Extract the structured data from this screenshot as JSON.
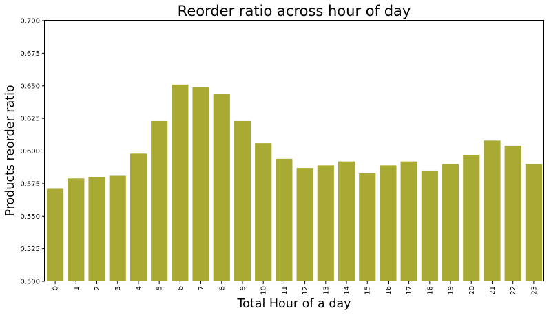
{
  "chart_data": {
    "type": "bar",
    "title": "Reorder ratio across hour of day",
    "xlabel": "Total Hour of a day",
    "ylabel": "Products reorder ratio",
    "categories": [
      "0",
      "1",
      "2",
      "3",
      "4",
      "5",
      "6",
      "7",
      "8",
      "9",
      "10",
      "11",
      "12",
      "13",
      "14",
      "15",
      "16",
      "17",
      "18",
      "19",
      "20",
      "21",
      "22",
      "23"
    ],
    "values": [
      0.571,
      0.579,
      0.58,
      0.581,
      0.598,
      0.623,
      0.651,
      0.649,
      0.644,
      0.623,
      0.606,
      0.594,
      0.587,
      0.589,
      0.592,
      0.583,
      0.589,
      0.592,
      0.585,
      0.59,
      0.597,
      0.608,
      0.604,
      0.59
    ],
    "ylim": [
      0.5,
      0.7
    ],
    "yticks": [
      "0.500",
      "0.525",
      "0.550",
      "0.575",
      "0.600",
      "0.625",
      "0.650",
      "0.675",
      "0.700"
    ],
    "bar_color": "#a9aa34",
    "grid": false,
    "legend": "none"
  }
}
